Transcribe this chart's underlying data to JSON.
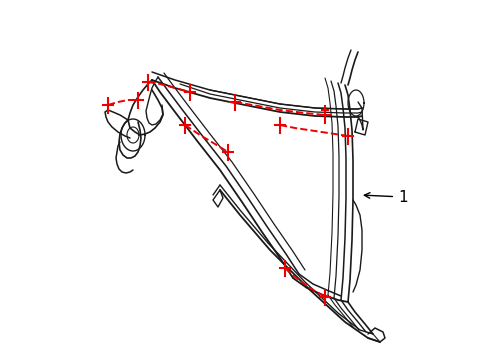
{
  "background_color": "#ffffff",
  "line_color": "#1a1a1a",
  "dash_color": "#ee0000",
  "figsize": [
    4.89,
    3.6
  ],
  "dpi": 100,
  "xlim": [
    0,
    489
  ],
  "ylim": [
    0,
    360
  ]
}
